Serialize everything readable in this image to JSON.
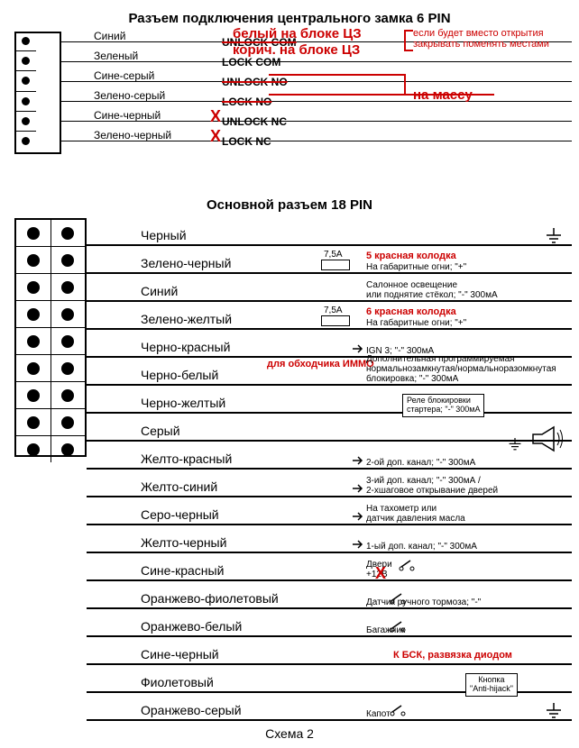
{
  "title6": "Разъем подключения центрального замка 6 PIN",
  "title18": "Основной разъем 18 PIN",
  "footer": "Схема 2",
  "pins6": [
    {
      "wire": "Синий",
      "signal": "UNLOCK COM",
      "strike": true
    },
    {
      "wire": "Зеленый",
      "signal": "LOCK COM",
      "strike": false
    },
    {
      "wire": "Сине-серый",
      "signal": "UNLOCK NO",
      "strike": true
    },
    {
      "wire": "Зелено-серый",
      "signal": "LOCK NO",
      "strike": true
    },
    {
      "wire": "Сине-черный",
      "signal": "UNLOCK NC",
      "strike": false
    },
    {
      "wire": "Зелено-черный",
      "signal": "LOCK NC",
      "strike": false
    }
  ],
  "notes6": {
    "n1": "белый на блоке ЦЗ",
    "n2": "корич. на блоке ЦЗ",
    "n3": "если будет вместо открытия закрывать поменять местами",
    "n4": "на массу"
  },
  "pins18": [
    {
      "wire": "Черный",
      "desc": "",
      "ground": true
    },
    {
      "wire": "Зелено-черный",
      "desc": "На габаритные огни; \"+\"",
      "fuse": "7,5A",
      "red": "5 красная колодка"
    },
    {
      "wire": "Синий",
      "desc": "Салонное освещение\nили поднятие стёкол; \"-\" 300мА"
    },
    {
      "wire": "Зелено-желтый",
      "desc": "На габаритные огни; \"+\"",
      "fuse": "7,5A",
      "red": "6 красная колодка"
    },
    {
      "wire": "Черно-красный",
      "desc": "IGN 3; \"-\" 300мА",
      "arrow": true
    },
    {
      "wire": "Черно-белый",
      "desc": "Дополнительная программируемая\nнормальнозамкнутая/нормальноразомкнутая\nблокировка; \"-\" 300мА",
      "red_above": "для обходчика ИММО"
    },
    {
      "wire": "Черно-желтый",
      "desc": "",
      "relay": true
    },
    {
      "wire": "Серый",
      "desc": "",
      "horn": true
    },
    {
      "wire": "Желто-красный",
      "desc": "2-ой доп. канал; \"-\" 300мА",
      "arrow": true
    },
    {
      "wire": "Желто-синий",
      "desc": "3-ий доп. канал; \"-\" 300мА /\n2-хшаговое открывание дверей",
      "arrow": true
    },
    {
      "wire": "Серо-черный",
      "desc": "На тахометр или\nдатчик давления масла",
      "arrow": true
    },
    {
      "wire": "Желто-черный",
      "desc": "1-ый доп. канал; \"-\" 300мА",
      "arrow": true
    },
    {
      "wire": "Сине-красный",
      "desc": "Двери\n+12В",
      "x": true,
      "icon": "door"
    },
    {
      "wire": "Оранжево-фиолетовый",
      "desc": "Датчик ручного тормоза; \"-\"",
      "icon": "brake"
    },
    {
      "wire": "Оранжево-белый",
      "desc": "Багажник",
      "icon": "trunk"
    },
    {
      "wire": "Сине-черный",
      "desc": "",
      "red_right": "К БСК, развязка диодом"
    },
    {
      "wire": "Фиолетовый",
      "desc": "",
      "button": "Кнопка\n\"Anti-hijack\""
    },
    {
      "wire": "Оранжево-серый",
      "desc": "Капот",
      "icon": "hood",
      "ground": true
    }
  ],
  "relay_text": "Реле блокировки\nстартера; \"-\" 300мА",
  "colors": {
    "red": "#c00000",
    "black": "#000000",
    "bg": "#ffffff"
  }
}
